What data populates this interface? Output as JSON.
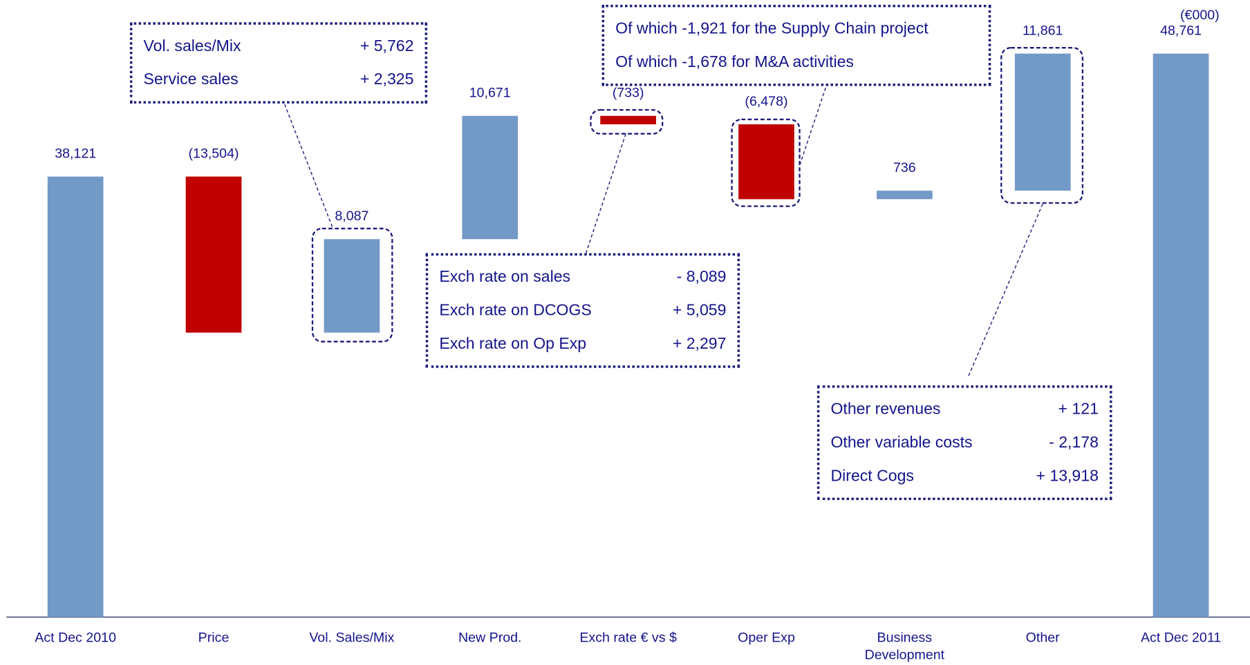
{
  "chart_data": {
    "type": "waterfall",
    "unit": "(€000)",
    "categories": [
      "Act Dec 2010",
      "Price",
      "Vol. Sales/Mix",
      "New Prod.",
      "Exch rate € vs $",
      "Oper Exp",
      "Business Development",
      "Other",
      "Act Dec 2011"
    ],
    "values": [
      38121,
      -13504,
      8087,
      10671,
      -733,
      -6478,
      736,
      11861,
      48761
    ],
    "value_labels": [
      "38,121",
      "(13,504)",
      "8,087",
      "10,671",
      "(733)",
      "(6,478)",
      "736",
      "11,861",
      "48,761"
    ],
    "is_total": [
      true,
      false,
      false,
      false,
      false,
      false,
      false,
      false,
      true
    ],
    "colors": {
      "increase": "#7399c6",
      "decrease": "#c00000",
      "total": "#7399c6"
    },
    "ylim": [
      0,
      53400
    ],
    "annotations": [
      {
        "rows": [
          [
            "Vol. sales/Mix",
            "+ 5,762"
          ],
          [
            "Service sales",
            "+ 2,325"
          ]
        ]
      },
      {
        "rows": [
          [
            "Exch rate on sales",
            "-  8,089"
          ],
          [
            "Exch rate on DCOGS",
            "+ 5,059"
          ],
          [
            "Exch rate on Op Exp",
            "+ 2,297"
          ]
        ]
      },
      {
        "rows": [
          [
            "Of which -1,921 for the Supply Chain project"
          ],
          [
            "Of which -1,678 for M&A activities"
          ]
        ]
      },
      {
        "rows": [
          [
            "Other revenues",
            "+ 121"
          ],
          [
            "Other variable costs",
            "- 2,178"
          ],
          [
            "Direct Cogs",
            "+ 13,918"
          ]
        ]
      }
    ]
  }
}
